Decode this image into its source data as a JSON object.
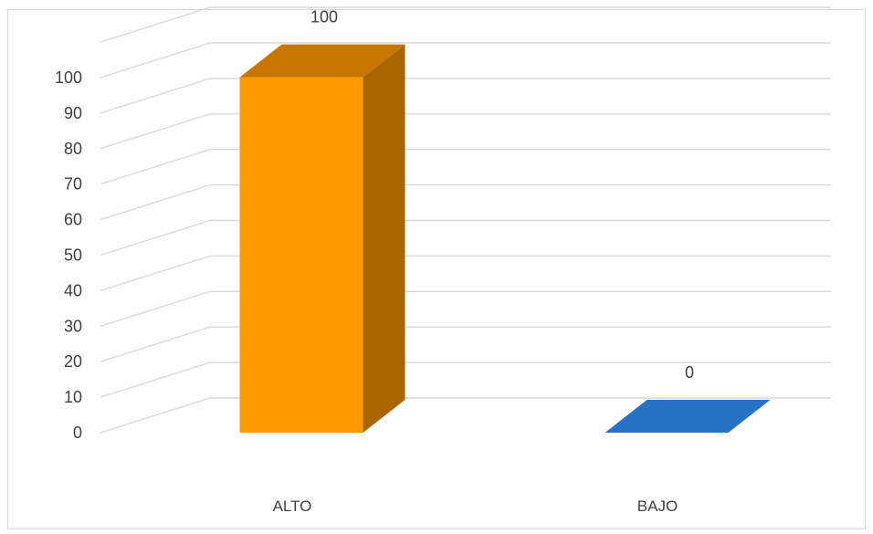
{
  "chart_data": {
    "type": "bar",
    "style": "3d-column",
    "categories": [
      "ALTO",
      "BAJO"
    ],
    "values": [
      100,
      0
    ],
    "data_labels": [
      "100",
      "0"
    ],
    "ylim": [
      0,
      100
    ],
    "yticks": [
      0,
      10,
      20,
      30,
      40,
      50,
      60,
      70,
      80,
      90,
      100
    ],
    "grid": true,
    "legend": "none",
    "title": "",
    "xlabel": "",
    "ylabel": "",
    "colors": [
      "#FF9900",
      "#2672C4"
    ],
    "gridline_color": "#D9D9D9"
  }
}
